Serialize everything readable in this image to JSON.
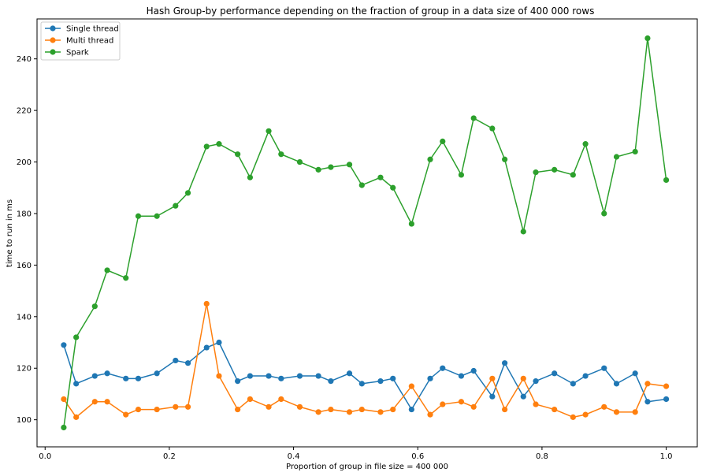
{
  "chart_data": {
    "type": "line",
    "title": "Hash Group-by performance depending on the fraction of group in a data size of 400 000 rows",
    "xlabel": "Proportion of group in file size = 400 000",
    "ylabel": "time to run in ms",
    "xlim": [
      -0.013,
      1.05
    ],
    "ylim": [
      89.5,
      255.5
    ],
    "x_ticks": [
      0.0,
      0.2,
      0.4,
      0.6,
      0.8,
      1.0
    ],
    "x_tick_labels": [
      "0.0",
      "0.2",
      "0.4",
      "0.6",
      "0.8",
      "1.0"
    ],
    "y_ticks": [
      100,
      120,
      140,
      160,
      180,
      200,
      220,
      240
    ],
    "y_tick_labels": [
      "100",
      "120",
      "140",
      "160",
      "180",
      "200",
      "220",
      "240"
    ],
    "grid": false,
    "legend_position": "top-left",
    "x": [
      0.03,
      0.05,
      0.08,
      0.1,
      0.13,
      0.15,
      0.18,
      0.21,
      0.23,
      0.26,
      0.28,
      0.31,
      0.33,
      0.36,
      0.38,
      0.41,
      0.44,
      0.46,
      0.49,
      0.51,
      0.54,
      0.56,
      0.59,
      0.62,
      0.64,
      0.67,
      0.69,
      0.72,
      0.74,
      0.77,
      0.79,
      0.82,
      0.85,
      0.87,
      0.9,
      0.92,
      0.95,
      0.97,
      1.0
    ],
    "series": [
      {
        "name": "Single thread",
        "color": "#1f77b4",
        "values": [
          129,
          114,
          117,
          118,
          116,
          116,
          118,
          123,
          122,
          128,
          130,
          115,
          117,
          117,
          116,
          117,
          117,
          115,
          118,
          114,
          115,
          116,
          104,
          116,
          120,
          117,
          119,
          109,
          122,
          109,
          115,
          118,
          114,
          117,
          120,
          114,
          118,
          107,
          108
        ]
      },
      {
        "name": "Multi thread",
        "color": "#ff7f0e",
        "values": [
          108,
          101,
          107,
          107,
          102,
          104,
          104,
          105,
          105,
          145,
          117,
          104,
          108,
          105,
          108,
          105,
          103,
          104,
          103,
          104,
          103,
          104,
          113,
          102,
          106,
          107,
          105,
          116,
          104,
          116,
          106,
          104,
          101,
          102,
          105,
          103,
          103,
          114,
          113
        ]
      },
      {
        "name": "Spark",
        "color": "#2ca02c",
        "values": [
          97,
          132,
          144,
          158,
          155,
          179,
          179,
          183,
          188,
          206,
          207,
          203,
          194,
          212,
          203,
          200,
          197,
          198,
          199,
          191,
          194,
          190,
          176,
          201,
          208,
          195,
          217,
          213,
          201,
          173,
          196,
          197,
          195,
          207,
          180,
          202,
          204,
          248,
          193
        ]
      }
    ]
  }
}
